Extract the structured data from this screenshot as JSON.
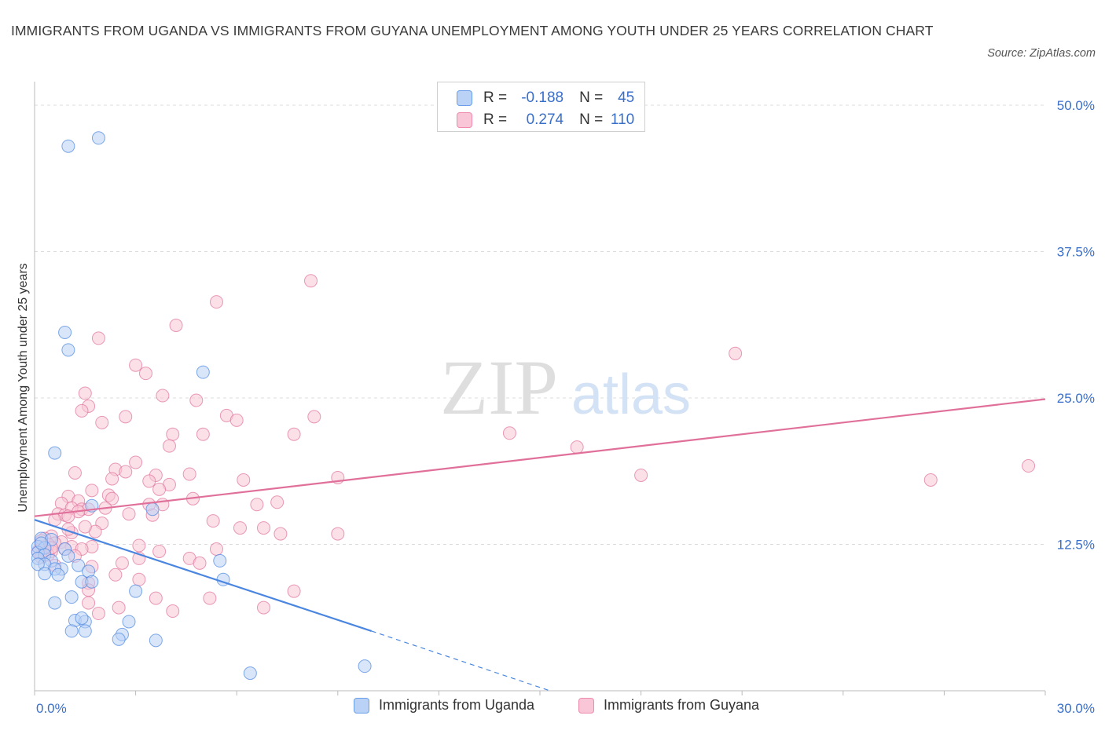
{
  "title": "IMMIGRANTS FROM UGANDA VS IMMIGRANTS FROM GUYANA UNEMPLOYMENT AMONG YOUTH UNDER 25 YEARS CORRELATION CHART",
  "source": "Source: ZipAtlas.com",
  "watermark": {
    "zip": "ZIP",
    "atlas": "atlas"
  },
  "stats": [
    {
      "r_label": "R = ",
      "r_value": "-0.188",
      "n_label": "N = ",
      "n_value": "45",
      "color": "#6a9ee8",
      "fill": "#b9d2f5"
    },
    {
      "r_label": "R = ",
      "r_value": "0.274",
      "n_label": "N = ",
      "n_value": "110",
      "color": "#ee8aaa",
      "fill": "#f8c6d6"
    }
  ],
  "legend": [
    {
      "label": "Immigrants from Uganda",
      "color": "#6a9ee8",
      "fill": "#b9d2f5"
    },
    {
      "label": "Immigrants from Guyana",
      "color": "#ee8aaa",
      "fill": "#f8c6d6"
    }
  ],
  "chart_data": {
    "type": "scatter",
    "title": "IMMIGRANTS FROM UGANDA VS IMMIGRANTS FROM GUYANA UNEMPLOYMENT AMONG YOUTH UNDER 25 YEARS CORRELATION CHART",
    "xlabel": "",
    "ylabel": "Unemployment Among Youth under 25 years",
    "xlim": [
      0,
      30
    ],
    "ylim": [
      0,
      50
    ],
    "x_tick_labels": [
      "0.0%",
      "30.0%"
    ],
    "y_ticks": [
      12.5,
      25.0,
      37.5,
      50.0
    ],
    "y_tick_labels": [
      "12.5%",
      "25.0%",
      "37.5%",
      "50.0%"
    ],
    "grid": true,
    "legend_position": "bottom",
    "series": [
      {
        "name": "Immigrants from Uganda",
        "color": "#4a86e0",
        "fill": "#b9d2f5",
        "trend": {
          "x": [
            0,
            10.0
          ],
          "y": [
            14.6,
            5.1
          ],
          "dashed_to": [
            15.3,
            0
          ]
        },
        "points": [
          [
            1.0,
            46.5
          ],
          [
            1.9,
            47.2
          ],
          [
            0.9,
            30.6
          ],
          [
            1.0,
            29.1
          ],
          [
            5.0,
            27.2
          ],
          [
            0.6,
            20.3
          ],
          [
            1.7,
            15.8
          ],
          [
            3.5,
            15.5
          ],
          [
            0.2,
            13.0
          ],
          [
            0.5,
            12.9
          ],
          [
            0.1,
            12.3
          ],
          [
            0.3,
            12.2
          ],
          [
            0.9,
            12.1
          ],
          [
            0.1,
            11.8
          ],
          [
            0.3,
            11.6
          ],
          [
            1.0,
            11.5
          ],
          [
            0.1,
            11.3
          ],
          [
            0.5,
            11.1
          ],
          [
            0.3,
            10.8
          ],
          [
            0.1,
            10.8
          ],
          [
            0.8,
            10.4
          ],
          [
            1.3,
            10.7
          ],
          [
            0.6,
            10.4
          ],
          [
            0.3,
            10.0
          ],
          [
            0.7,
            9.9
          ],
          [
            1.6,
            10.2
          ],
          [
            5.5,
            11.1
          ],
          [
            1.4,
            9.3
          ],
          [
            1.7,
            9.3
          ],
          [
            5.6,
            9.5
          ],
          [
            3.0,
            8.5
          ],
          [
            1.1,
            8.0
          ],
          [
            0.6,
            7.5
          ],
          [
            1.2,
            6.0
          ],
          [
            1.5,
            5.9
          ],
          [
            1.4,
            6.2
          ],
          [
            2.8,
            5.9
          ],
          [
            1.1,
            5.1
          ],
          [
            1.5,
            5.1
          ],
          [
            2.6,
            4.8
          ],
          [
            2.5,
            4.4
          ],
          [
            3.6,
            4.3
          ],
          [
            6.4,
            1.5
          ],
          [
            9.8,
            2.1
          ],
          [
            0.2,
            12.6
          ]
        ]
      },
      {
        "name": "Immigrants from Guyana",
        "color": "#e0709a",
        "fill": "#f8c6d6",
        "trend": {
          "x": [
            0,
            30
          ],
          "y": [
            14.9,
            24.9
          ]
        },
        "points": [
          [
            8.2,
            35.0
          ],
          [
            5.4,
            33.2
          ],
          [
            4.2,
            31.2
          ],
          [
            1.9,
            30.1
          ],
          [
            20.8,
            28.8
          ],
          [
            3.0,
            27.8
          ],
          [
            3.3,
            27.1
          ],
          [
            1.5,
            25.4
          ],
          [
            3.8,
            25.2
          ],
          [
            4.8,
            24.8
          ],
          [
            1.6,
            24.3
          ],
          [
            1.4,
            23.9
          ],
          [
            5.7,
            23.5
          ],
          [
            2.7,
            23.4
          ],
          [
            8.3,
            23.4
          ],
          [
            6.0,
            23.1
          ],
          [
            2.0,
            22.9
          ],
          [
            14.1,
            22.0
          ],
          [
            4.1,
            21.9
          ],
          [
            5.0,
            21.9
          ],
          [
            7.7,
            21.9
          ],
          [
            4.0,
            20.9
          ],
          [
            16.1,
            20.8
          ],
          [
            3.0,
            19.5
          ],
          [
            2.4,
            18.9
          ],
          [
            2.7,
            18.7
          ],
          [
            3.6,
            18.4
          ],
          [
            4.6,
            18.5
          ],
          [
            1.2,
            18.6
          ],
          [
            18.0,
            18.4
          ],
          [
            9.0,
            18.2
          ],
          [
            26.6,
            18.0
          ],
          [
            29.5,
            19.2
          ],
          [
            2.3,
            18.1
          ],
          [
            6.2,
            18.0
          ],
          [
            3.4,
            17.9
          ],
          [
            4.0,
            17.6
          ],
          [
            3.7,
            17.2
          ],
          [
            1.7,
            17.1
          ],
          [
            2.2,
            16.7
          ],
          [
            1.0,
            16.6
          ],
          [
            2.3,
            16.4
          ],
          [
            4.7,
            16.4
          ],
          [
            1.3,
            16.2
          ],
          [
            0.8,
            16.0
          ],
          [
            7.2,
            16.1
          ],
          [
            6.6,
            15.9
          ],
          [
            3.8,
            15.9
          ],
          [
            3.4,
            15.9
          ],
          [
            1.4,
            15.5
          ],
          [
            1.6,
            15.5
          ],
          [
            1.1,
            15.6
          ],
          [
            1.3,
            15.3
          ],
          [
            0.7,
            15.1
          ],
          [
            0.9,
            15.0
          ],
          [
            1.0,
            14.9
          ],
          [
            3.5,
            15.0
          ],
          [
            2.8,
            15.1
          ],
          [
            0.6,
            14.6
          ],
          [
            2.0,
            14.3
          ],
          [
            5.3,
            14.5
          ],
          [
            6.8,
            13.9
          ],
          [
            6.1,
            13.9
          ],
          [
            7.3,
            13.4
          ],
          [
            9.0,
            13.4
          ],
          [
            1.8,
            13.6
          ],
          [
            1.1,
            13.5
          ],
          [
            0.5,
            13.2
          ],
          [
            0.3,
            13.0
          ],
          [
            0.8,
            12.7
          ],
          [
            0.6,
            12.6
          ],
          [
            0.4,
            12.5
          ],
          [
            0.2,
            12.3
          ],
          [
            1.1,
            12.3
          ],
          [
            1.7,
            12.3
          ],
          [
            3.1,
            12.4
          ],
          [
            5.4,
            12.1
          ],
          [
            0.9,
            12.1
          ],
          [
            1.4,
            12.1
          ],
          [
            0.5,
            11.9
          ],
          [
            0.3,
            11.8
          ],
          [
            0.1,
            11.9
          ],
          [
            0.4,
            11.6
          ],
          [
            0.2,
            11.4
          ],
          [
            1.2,
            11.5
          ],
          [
            3.7,
            11.9
          ],
          [
            3.1,
            11.3
          ],
          [
            4.6,
            11.3
          ],
          [
            2.6,
            10.9
          ],
          [
            4.9,
            10.9
          ],
          [
            0.6,
            10.7
          ],
          [
            1.7,
            10.6
          ],
          [
            2.4,
            9.9
          ],
          [
            3.1,
            9.5
          ],
          [
            1.6,
            9.2
          ],
          [
            1.6,
            8.6
          ],
          [
            7.7,
            8.5
          ],
          [
            3.6,
            7.9
          ],
          [
            5.2,
            7.9
          ],
          [
            1.6,
            7.5
          ],
          [
            2.5,
            7.1
          ],
          [
            6.8,
            7.1
          ],
          [
            4.1,
            6.8
          ],
          [
            1.9,
            6.6
          ],
          [
            0.3,
            12.0
          ],
          [
            0.5,
            12.2
          ],
          [
            1.0,
            13.8
          ],
          [
            1.5,
            14.0
          ],
          [
            2.1,
            15.6
          ],
          [
            0.2,
            12.8
          ]
        ]
      }
    ]
  }
}
